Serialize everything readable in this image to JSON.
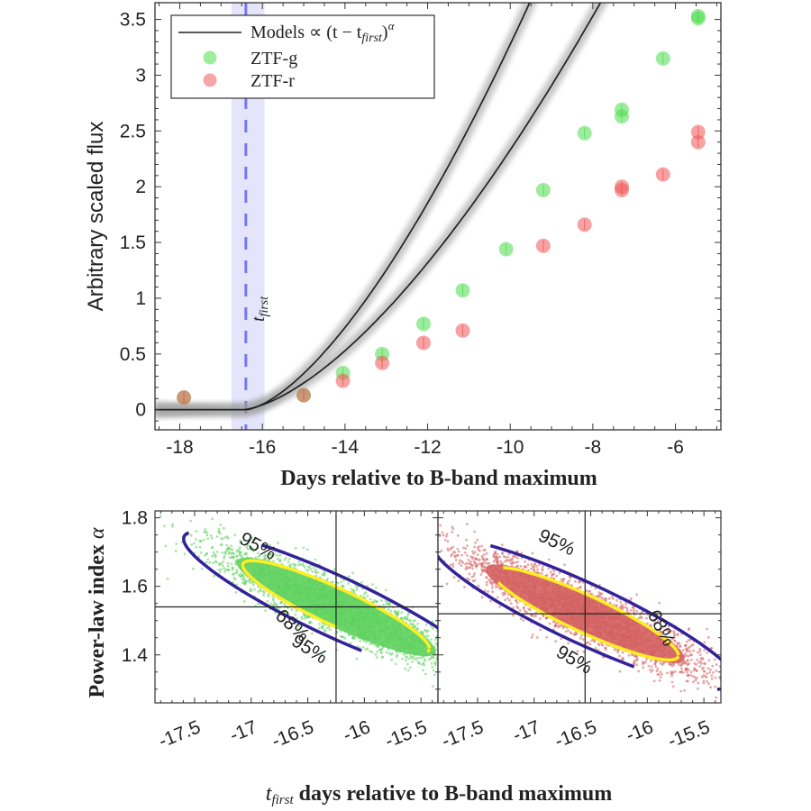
{
  "chart_data": [
    {
      "type": "scatter",
      "panel": "light-curve",
      "title": "",
      "xlabel": "Days relative to B-band maximum",
      "ylabel": "Arbitrary scaled flux",
      "xlim": [
        -18.6,
        -4.9
      ],
      "ylim": [
        -0.18,
        3.65
      ],
      "xticks": [
        -18,
        -16,
        -14,
        -12,
        -10,
        -8,
        -6
      ],
      "xtick_labels": [
        "-18",
        "-16",
        "-14",
        "-12",
        "-10",
        "-8",
        "-6"
      ],
      "yticks": [
        0,
        0.5,
        1,
        1.5,
        2,
        2.5,
        3,
        3.5
      ],
      "ytick_labels": [
        "0",
        "0.5",
        "1",
        "1.5",
        "2",
        "2.5",
        "3",
        "3.5"
      ],
      "grid": false,
      "legend": {
        "position": "top-left",
        "entries": [
          {
            "label": "Models ∝ (t − t",
            "sub": "first",
            "sup": "α",
            "marker": "line",
            "color": "#222222"
          },
          {
            "label": "ZTF-g",
            "marker": "circle",
            "color": "#5ee35e"
          },
          {
            "label": "ZTF-r",
            "marker": "circle",
            "color": "#f06a6a"
          }
        ]
      },
      "vline": {
        "label_main": "t",
        "label_sub": "first",
        "x": -16.4,
        "band": [
          -16.75,
          -15.95
        ],
        "color": "#7777ee",
        "band_color": "#e4e4fb"
      },
      "series": [
        {
          "name": "ZTF-g",
          "color": "#4ddd4d",
          "points": [
            {
              "x": -17.9,
              "y": 0.11
            },
            {
              "x": -15.0,
              "y": 0.13
            },
            {
              "x": -14.05,
              "y": 0.33
            },
            {
              "x": -13.1,
              "y": 0.5
            },
            {
              "x": -12.1,
              "y": 0.77
            },
            {
              "x": -11.15,
              "y": 1.07
            },
            {
              "x": -10.1,
              "y": 1.44
            },
            {
              "x": -9.2,
              "y": 1.97
            },
            {
              "x": -8.2,
              "y": 2.48
            },
            {
              "x": -7.3,
              "y": 2.63
            },
            {
              "x": -7.3,
              "y": 2.69
            },
            {
              "x": -6.3,
              "y": 3.15
            },
            {
              "x": -5.45,
              "y": 3.51
            },
            {
              "x": -5.45,
              "y": 3.53
            }
          ]
        },
        {
          "name": "ZTF-r",
          "color": "#ee5555",
          "points": [
            {
              "x": -17.9,
              "y": 0.11
            },
            {
              "x": -15.0,
              "y": 0.13
            },
            {
              "x": -14.05,
              "y": 0.26
            },
            {
              "x": -13.1,
              "y": 0.42
            },
            {
              "x": -12.1,
              "y": 0.6
            },
            {
              "x": -11.15,
              "y": 0.71
            },
            {
              "x": -9.2,
              "y": 1.47
            },
            {
              "x": -8.2,
              "y": 1.66
            },
            {
              "x": -7.3,
              "y": 1.97
            },
            {
              "x": -7.3,
              "y": 2.0
            },
            {
              "x": -6.3,
              "y": 2.11
            },
            {
              "x": -5.45,
              "y": 2.4
            },
            {
              "x": -5.45,
              "y": 2.49
            }
          ]
        }
      ],
      "models": [
        {
          "name": "model-g",
          "t_first": -16.4,
          "alpha": 1.52,
          "scale": 0.195
        },
        {
          "name": "model-r",
          "t_first": -16.5,
          "alpha": 1.55,
          "scale": 0.128
        }
      ]
    },
    {
      "type": "scatter",
      "panel": "posterior-g",
      "title": "",
      "xlabel": "",
      "ylabel": "Power-law index α",
      "xlim": [
        -17.85,
        -15.35
      ],
      "ylim": [
        1.26,
        1.82
      ],
      "xticks": [
        -17.5,
        -17,
        -16.5,
        -16,
        -15.5
      ],
      "xtick_labels": [
        "-17.5",
        "-17",
        "-16.5",
        "-16",
        "-15.5"
      ],
      "yticks": [
        1.4,
        1.6,
        1.8
      ],
      "ytick_labels": [
        "1.4",
        "1.6",
        "1.8"
      ],
      "best_fit": {
        "x": -16.25,
        "y": 1.54
      },
      "color": "#5fd15f",
      "contours": [
        {
          "level": "68%",
          "color": "#ffee22",
          "label": "68%"
        },
        {
          "level": "95%",
          "color": "#332299",
          "label": "95%"
        }
      ]
    },
    {
      "type": "scatter",
      "panel": "posterior-r",
      "title": "",
      "xlabel": "t_first days relative to B-band maximum",
      "ylabel": "",
      "xlim": [
        -17.85,
        -15.35
      ],
      "ylim": [
        1.26,
        1.82
      ],
      "xticks": [
        -17.5,
        -17,
        -16.5,
        -16,
        -15.5
      ],
      "xtick_labels": [
        "-17.5",
        "-17",
        "-16.5",
        "-16",
        "-15.5"
      ],
      "yticks": [
        1.4,
        1.6,
        1.8
      ],
      "ytick_labels": [
        "1.4",
        "1.6",
        "1.8"
      ],
      "best_fit": {
        "x": -16.55,
        "y": 1.52
      },
      "color": "#d46060",
      "contours": [
        {
          "level": "68%",
          "color": "#ffee22",
          "label": "68%"
        },
        {
          "level": "95%",
          "color": "#332299",
          "label": "95%"
        }
      ]
    }
  ],
  "labels": {
    "bottom_xlabel_main": "t",
    "bottom_xlabel_sub": "first",
    "bottom_xlabel_rest": " days relative to B-band maximum",
    "bottom_ylabel_main": "Power-law index ",
    "bottom_ylabel_alpha": "α",
    "label_68": "68%",
    "label_95": "95%"
  }
}
